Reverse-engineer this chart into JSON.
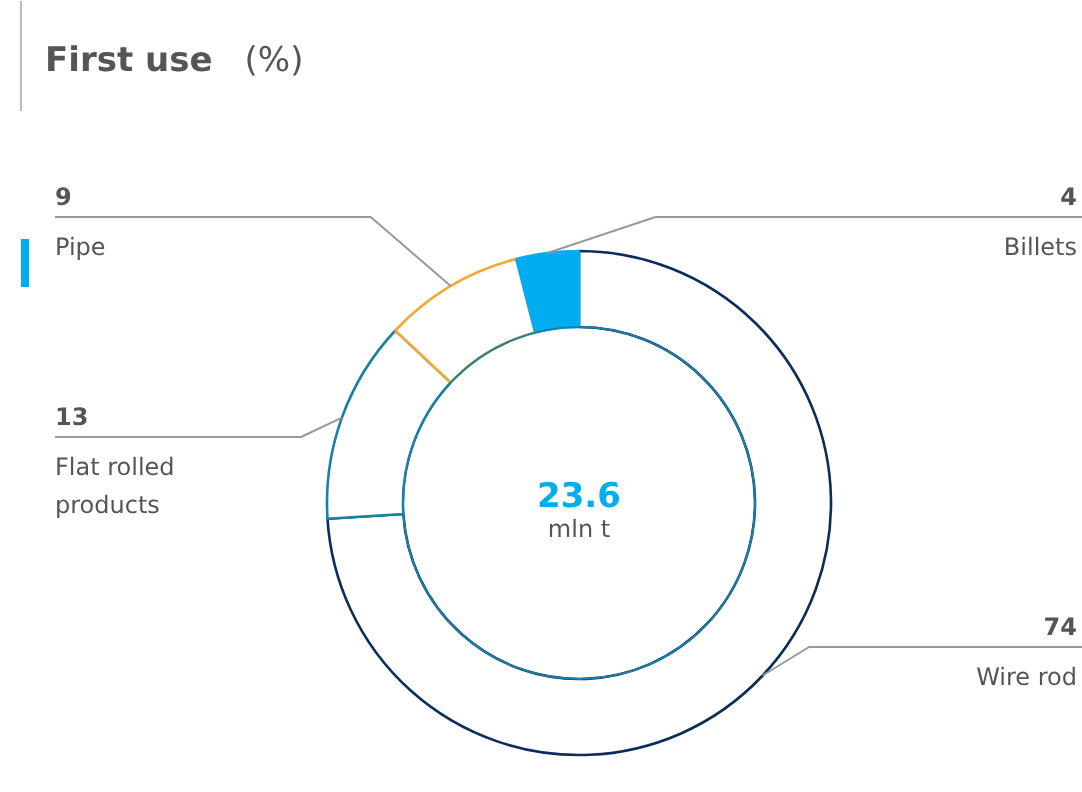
{
  "chart_data": {
    "type": "donut",
    "title": "First use (%)",
    "categories": [
      "Wire rod",
      "Flat rolled\nproducts",
      "Pipe",
      "Billets"
    ],
    "values": [
      74,
      13,
      9,
      4
    ],
    "colors": [
      "#0b2d5b",
      "#1b7fa6",
      "#f2aa35",
      "#00aeef"
    ],
    "data_labels": true,
    "annotations": [
      "23.6",
      "mln t"
    ]
  }
}
